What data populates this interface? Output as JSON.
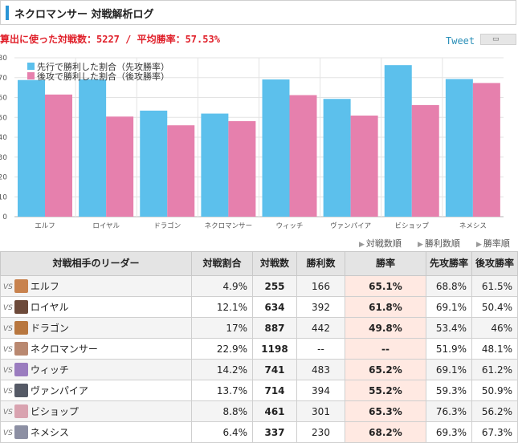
{
  "header": {
    "title": "ネクロマンサー 対戦解析ログ"
  },
  "summary": {
    "text": "算出に使った対戦数：5227 / 平均勝率：57.53%"
  },
  "tweet": {
    "label": "Tweet"
  },
  "colors": {
    "series1": "#5cc0ec",
    "series2": "#e680ad",
    "winrate_text": "#f06a1e",
    "winrate_bg": "#ffe9e2",
    "accent": "#2a95d6"
  },
  "chart_data": {
    "type": "bar",
    "categories": [
      "エルフ",
      "ロイヤル",
      "ドラゴン",
      "ネクロマンサー",
      "ウィッチ",
      "ヴァンパイア",
      "ビショップ",
      "ネメシス"
    ],
    "series": [
      {
        "name": "先行で勝利した割合（先攻勝率）",
        "values": [
          68.8,
          69.1,
          53.4,
          51.9,
          69.1,
          59.3,
          76.3,
          69.3
        ]
      },
      {
        "name": "後攻で勝利した割合（後攻勝率）",
        "values": [
          61.5,
          50.4,
          46,
          48.1,
          61.2,
          50.9,
          56.2,
          67.3
        ]
      }
    ],
    "yticks": [
      "0",
      "10",
      "20",
      "30",
      "40",
      "50",
      "60",
      "70",
      "80"
    ],
    "ylim": [
      0,
      80
    ],
    "legend_position": "top-left",
    "grid": true
  },
  "sort": {
    "items": [
      "対戦数順",
      "勝利数順",
      "勝率順"
    ]
  },
  "table": {
    "headers": [
      "対戦相手のリーダー",
      "対戦割合",
      "対戦数",
      "勝利数",
      "勝率",
      "先攻勝率",
      "後攻勝率"
    ],
    "vs_label": "VS",
    "rows": [
      {
        "leader": "エルフ",
        "avatar": "elf-leader-avatar",
        "ratio": "4.9%",
        "games": "255",
        "wins": "166",
        "winrate": "65.1%",
        "first": "68.8%",
        "second": "61.5%",
        "highlight": true
      },
      {
        "leader": "ロイヤル",
        "avatar": "royal-leader-avatar",
        "ratio": "12.1%",
        "games": "634",
        "wins": "392",
        "winrate": "61.8%",
        "first": "69.1%",
        "second": "50.4%",
        "highlight": true
      },
      {
        "leader": "ドラゴン",
        "avatar": "dragon-leader-avatar",
        "ratio": "17%",
        "games": "887",
        "wins": "442",
        "winrate": "49.8%",
        "first": "53.4%",
        "second": "46%",
        "highlight": false
      },
      {
        "leader": "ネクロマンサー",
        "avatar": "necromancer-leader-avatar",
        "ratio": "22.9%",
        "games": "1198",
        "wins": "--",
        "winrate": "--",
        "first": "51.9%",
        "second": "48.1%",
        "highlight": false
      },
      {
        "leader": "ウィッチ",
        "avatar": "witch-leader-avatar",
        "ratio": "14.2%",
        "games": "741",
        "wins": "483",
        "winrate": "65.2%",
        "first": "69.1%",
        "second": "61.2%",
        "highlight": true
      },
      {
        "leader": "ヴァンパイア",
        "avatar": "vampire-leader-avatar",
        "ratio": "13.7%",
        "games": "714",
        "wins": "394",
        "winrate": "55.2%",
        "first": "59.3%",
        "second": "50.9%",
        "highlight": true
      },
      {
        "leader": "ビショップ",
        "avatar": "bishop-leader-avatar",
        "ratio": "8.8%",
        "games": "461",
        "wins": "301",
        "winrate": "65.3%",
        "first": "76.3%",
        "second": "56.2%",
        "highlight": true
      },
      {
        "leader": "ネメシス",
        "avatar": "nemesis-leader-avatar",
        "ratio": "6.4%",
        "games": "337",
        "wins": "230",
        "winrate": "68.2%",
        "first": "69.3%",
        "second": "67.3%",
        "highlight": true
      }
    ]
  }
}
